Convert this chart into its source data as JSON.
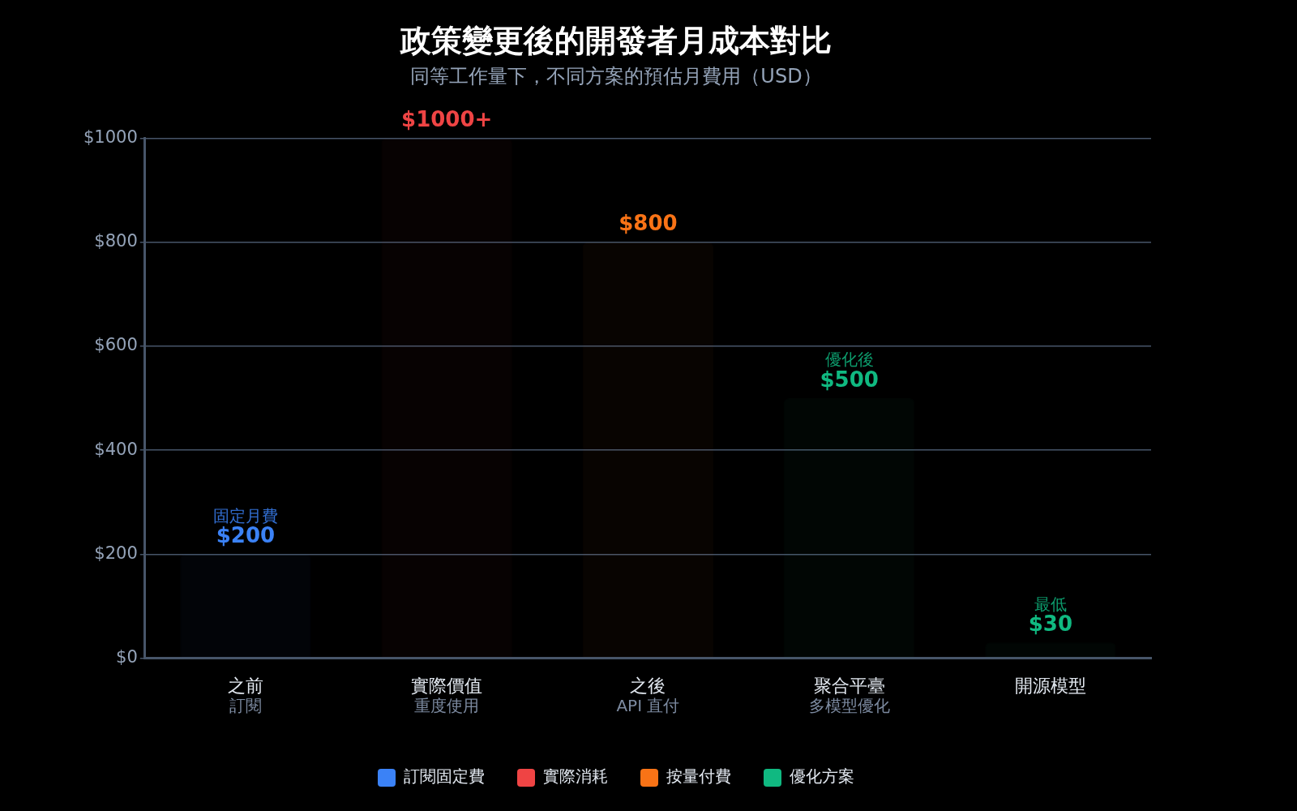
{
  "chart_data": {
    "type": "bar",
    "title": "政策變更後的開發者月成本對比",
    "subtitle": "同等工作量下，不同方案的預估月費用（USD）",
    "categories": [
      "之前",
      "實際價值",
      "之後",
      "聚合平臺",
      "開源模型"
    ],
    "series": [
      {
        "name": "訂閱固定費",
        "color": "#3b82f6",
        "values": [
          200,
          null,
          null,
          null,
          null
        ],
        "value_labels": [
          "$200",
          null,
          null,
          null,
          null
        ]
      },
      {
        "name": "實際消耗",
        "color": "#ef4444",
        "values": [
          null,
          1000,
          null,
          null,
          null
        ],
        "value_labels": [
          null,
          "$1000+",
          null,
          null,
          null
        ]
      },
      {
        "name": "按量付費",
        "color": "#f97316",
        "values": [
          null,
          null,
          800,
          null,
          null
        ],
        "value_labels": [
          null,
          null,
          "$800",
          null,
          null
        ]
      },
      {
        "name": "優化方案",
        "color": "#10b981",
        "values": [
          null,
          null,
          null,
          500,
          30
        ],
        "value_labels": [
          null,
          null,
          null,
          "$500",
          "$30"
        ]
      }
    ],
    "annotations": [
      {
        "text": "固定月費",
        "x": "之前",
        "y": 200
      },
      {
        "text": "優化後",
        "x": "聚合平臺",
        "y": 500
      },
      {
        "text": "最低",
        "x": "開源模型",
        "y": 30
      },
      "訂閱",
      "重度使用",
      "API 直付",
      "多模型優化"
    ],
    "ylim": [
      0,
      1000
    ],
    "yticks": [
      {
        "value": 0,
        "label": "$0"
      },
      {
        "value": 200,
        "label": "$200"
      },
      {
        "value": 400,
        "label": "$400"
      },
      {
        "value": 600,
        "label": "$600"
      },
      {
        "value": 800,
        "label": "$800"
      },
      {
        "value": 1000,
        "label": "$1000"
      }
    ],
    "grid": "y",
    "legend": "bottom"
  }
}
